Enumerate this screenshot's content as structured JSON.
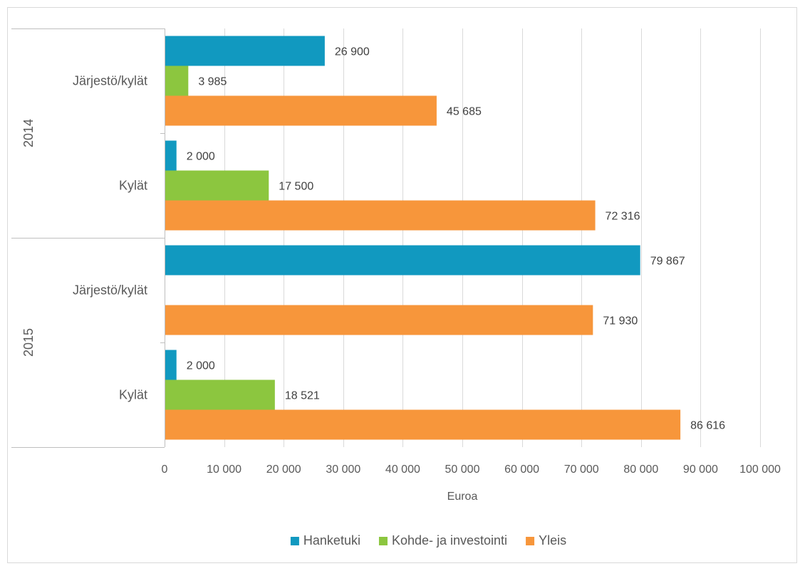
{
  "chart_data": {
    "type": "bar",
    "orientation": "horizontal",
    "xlabel": "Euroa",
    "xlim": [
      0,
      100000
    ],
    "x_ticks": [
      {
        "value": 0,
        "label": "0"
      },
      {
        "value": 10000,
        "label": "10 000"
      },
      {
        "value": 20000,
        "label": "20 000"
      },
      {
        "value": 30000,
        "label": "30 000"
      },
      {
        "value": 40000,
        "label": "40 000"
      },
      {
        "value": 50000,
        "label": "50 000"
      },
      {
        "value": 60000,
        "label": "60 000"
      },
      {
        "value": 70000,
        "label": "70 000"
      },
      {
        "value": 80000,
        "label": "80 000"
      },
      {
        "value": 90000,
        "label": "90 000"
      },
      {
        "value": 100000,
        "label": "100 000"
      }
    ],
    "grid": "vertical",
    "legend_position": "bottom",
    "groups": [
      {
        "label": "2014",
        "categories": [
          {
            "label": "Järjestö/kylät",
            "values": [
              26900,
              3985,
              45685
            ],
            "value_labels": [
              "26 900",
              "3 985",
              "45 685"
            ]
          },
          {
            "label": "Kylät",
            "values": [
              2000,
              17500,
              72316
            ],
            "value_labels": [
              "2 000",
              "17 500",
              "72 316"
            ]
          }
        ]
      },
      {
        "label": "2015",
        "categories": [
          {
            "label": "Järjestö/kylät",
            "values": [
              79867,
              null,
              71930
            ],
            "value_labels": [
              "79 867",
              "",
              "71 930"
            ]
          },
          {
            "label": "Kylät",
            "values": [
              2000,
              18521,
              86616
            ],
            "value_labels": [
              "2 000",
              "18 521",
              "86 616"
            ]
          }
        ]
      }
    ],
    "series": [
      {
        "name": "Hanketuki",
        "color": "#1199c0"
      },
      {
        "name": "Kohde- ja investointi",
        "color": "#8cc63f"
      },
      {
        "name": "Yleis",
        "color": "#f7963b"
      }
    ]
  }
}
